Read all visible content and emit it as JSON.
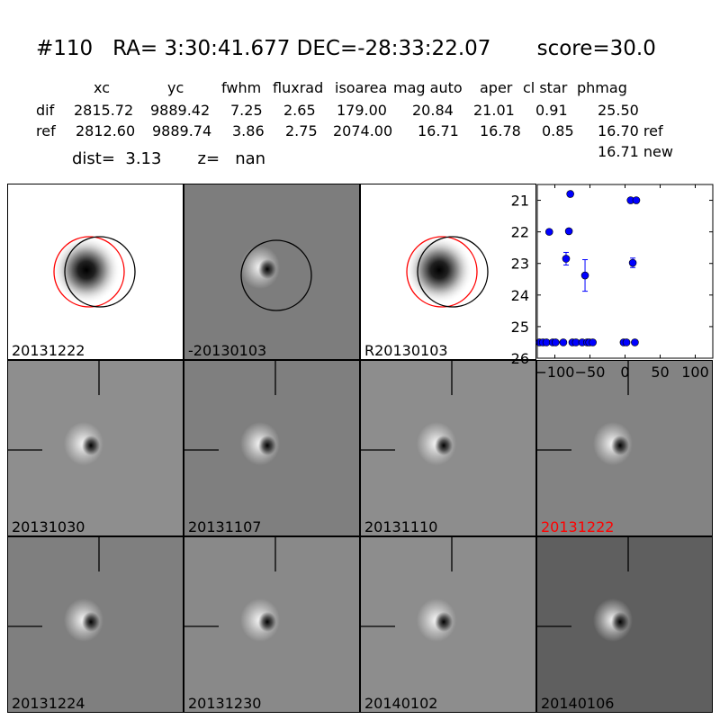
{
  "header": {
    "title": "#110   RA= 3:30:41.677 DEC=-28:33:22.07       score=30.0",
    "columns": [
      "xc",
      "yc",
      "fwhm",
      "fluxrad",
      "isoarea",
      "mag auto",
      "aper",
      "cl star",
      "phmag"
    ],
    "rows": [
      {
        "label": "dif",
        "values": [
          "2815.72",
          "9889.42",
          "7.25",
          "2.65",
          "179.00",
          "20.84",
          "21.01",
          "0.91",
          "25.50"
        ]
      },
      {
        "label": "ref",
        "values": [
          "2812.60",
          "9889.74",
          "3.86",
          "2.75",
          "2074.00",
          "16.71",
          "16.78",
          "0.85",
          "16.70 ref"
        ]
      }
    ],
    "extra_phmag": "16.71 new",
    "dist_line": "dist=  3.13       z=   nan"
  },
  "panels": [
    {
      "label": "20131222",
      "style": "ref",
      "bg": "#ffffff",
      "label_color": "#000000"
    },
    {
      "label": "-20130103",
      "style": "dipole-circle",
      "bg": "#7d7d7d",
      "label_color": "#000000"
    },
    {
      "label": "R20130103",
      "style": "ref",
      "bg": "#ffffff",
      "label_color": "#000000"
    },
    {
      "label": "20131030",
      "style": "stamp",
      "bg": "#8e8e8e",
      "label_color": "#000000"
    },
    {
      "label": "20131107",
      "style": "stamp",
      "bg": "#7f7f7f",
      "label_color": "#000000"
    },
    {
      "label": "20131110",
      "style": "stamp",
      "bg": "#8d8d8d",
      "label_color": "#000000"
    },
    {
      "label": "20131222",
      "style": "stamp",
      "bg": "#838383",
      "label_color": "#ff0000"
    },
    {
      "label": "20131224",
      "style": "stamp",
      "bg": "#7f7f7f",
      "label_color": "#000000"
    },
    {
      "label": "20131230",
      "style": "stamp",
      "bg": "#898989",
      "label_color": "#000000"
    },
    {
      "label": "20140102",
      "style": "stamp",
      "bg": "#8d8d8d",
      "label_color": "#000000"
    },
    {
      "label": "20140106",
      "style": "stamp",
      "bg": "#5f5f5f",
      "label_color": "#000000"
    }
  ],
  "chart_data": {
    "type": "scatter",
    "title": "",
    "xlabel": "",
    "ylabel": "",
    "xlim": [
      -125,
      125
    ],
    "ylim": [
      26,
      20.5
    ],
    "y_inverted": true,
    "xticks": [
      -100,
      -50,
      0,
      50,
      100
    ],
    "xtick_labels": [
      "−100",
      "−50",
      "0",
      "50",
      "100"
    ],
    "yticks": [
      21,
      22,
      23,
      24,
      25,
      26
    ],
    "ytick_labels": [
      "21",
      "22",
      "23",
      "24",
      "25",
      "26"
    ],
    "marker_color": "#0000ff",
    "series": [
      {
        "points": [
          {
            "x": -122,
            "y": 25.5
          },
          {
            "x": -117,
            "y": 25.5
          },
          {
            "x": -112,
            "y": 25.5
          },
          {
            "x": -108,
            "y": 22.0
          },
          {
            "x": -103,
            "y": 25.5
          },
          {
            "x": -99,
            "y": 25.5
          },
          {
            "x": -88,
            "y": 25.5
          },
          {
            "x": -84,
            "y": 22.85,
            "err": 0.2
          },
          {
            "x": -80,
            "y": 21.98
          },
          {
            "x": -78,
            "y": 20.8
          },
          {
            "x": -75,
            "y": 25.5
          },
          {
            "x": -70,
            "y": 25.5
          },
          {
            "x": -61,
            "y": 25.5
          },
          {
            "x": -57,
            "y": 23.38,
            "err": 0.5
          },
          {
            "x": -54,
            "y": 25.5
          },
          {
            "x": -51,
            "y": 25.5
          },
          {
            "x": -46,
            "y": 25.5
          },
          {
            "x": -2,
            "y": 25.5
          },
          {
            "x": 2,
            "y": 25.5
          },
          {
            "x": 8,
            "y": 21.0
          },
          {
            "x": 11,
            "y": 22.98,
            "err": 0.15
          },
          {
            "x": 14,
            "y": 25.5
          },
          {
            "x": 16,
            "y": 21.0
          }
        ]
      }
    ]
  }
}
